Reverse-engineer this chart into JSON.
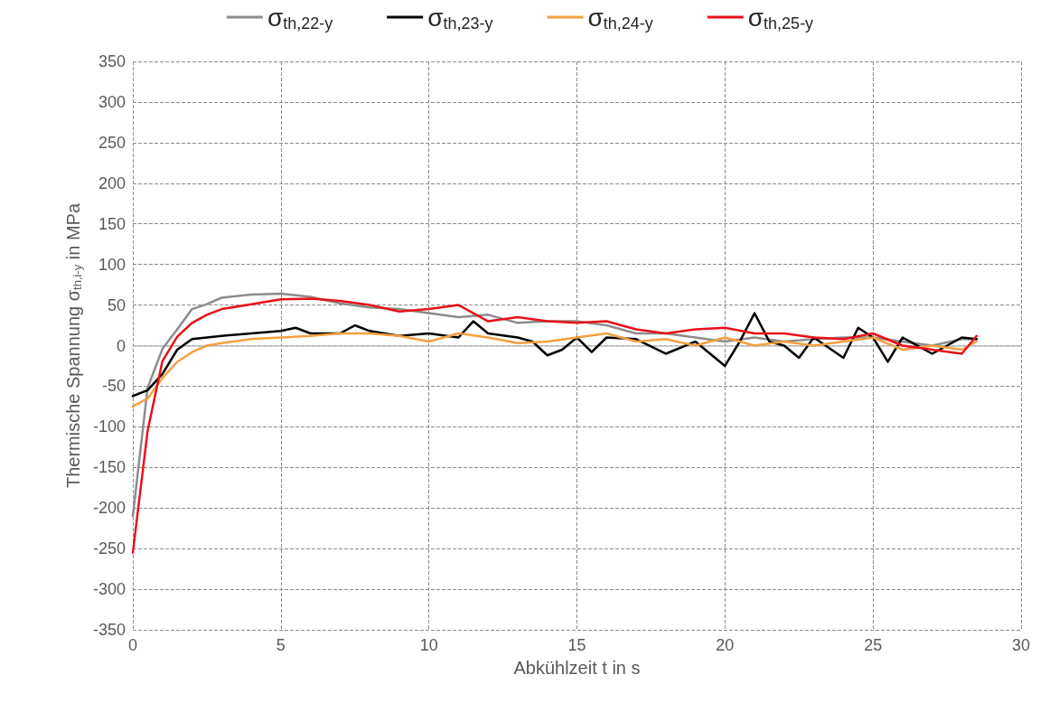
{
  "chart_data": {
    "type": "line",
    "xlabel": "Abkühlzeit t in s",
    "ylabel": "Thermische Spannung σ$_{th,i-y}$ in MPa",
    "xlim": [
      0,
      30
    ],
    "xticks": [
      0,
      5,
      10,
      15,
      20,
      25,
      30
    ],
    "ylim": [
      -350,
      350
    ],
    "yticks": [
      -350,
      -300,
      -250,
      -200,
      -150,
      -100,
      -50,
      0,
      50,
      100,
      150,
      200,
      250,
      300,
      350
    ],
    "grid": true,
    "legend": "top",
    "marker": "none",
    "line_style": "solid",
    "series": [
      {
        "name": "σ$_{th,22-y}$",
        "color": "#8c8c8c",
        "x": [
          0,
          0.5,
          1,
          1.5,
          2,
          2.5,
          3,
          4,
          5,
          6,
          7,
          8,
          9,
          10,
          11,
          12,
          13,
          14,
          15,
          16,
          17,
          18,
          19,
          20,
          21,
          22,
          23,
          24,
          25,
          26,
          27,
          28,
          28.5
        ],
        "values": [
          -210,
          -52,
          -4,
          20,
          45,
          51,
          59,
          63,
          64,
          60,
          52,
          47,
          45,
          40,
          35,
          38,
          28,
          30,
          30,
          25,
          15,
          15,
          10,
          5,
          10,
          5,
          8,
          10,
          10,
          5,
          0,
          8,
          8
        ]
      },
      {
        "name": "σ$_{th,23-y}$",
        "color": "#000000",
        "x": [
          0,
          0.5,
          1,
          1.5,
          2,
          2.5,
          3,
          4,
          5,
          5.5,
          6,
          7,
          7.5,
          8,
          9,
          10,
          11,
          11.5,
          12,
          13,
          13.5,
          14,
          14.5,
          15,
          15.5,
          16,
          17,
          18,
          19,
          20,
          20.5,
          21,
          21.5,
          22,
          22.5,
          23,
          24,
          24.5,
          25,
          25.5,
          26,
          27,
          28,
          28.5
        ],
        "values": [
          -62,
          -55,
          -35,
          -5,
          8,
          10,
          12,
          15,
          18,
          22,
          15,
          15,
          25,
          18,
          12,
          15,
          10,
          30,
          15,
          10,
          5,
          -12,
          -5,
          10,
          -8,
          10,
          8,
          -10,
          5,
          -25,
          5,
          40,
          5,
          0,
          -15,
          10,
          -15,
          22,
          10,
          -20,
          10,
          -10,
          10,
          8
        ]
      },
      {
        "name": "σ$_{th,24-y}$",
        "color": "#f4a040",
        "x": [
          0,
          0.5,
          1,
          1.5,
          2,
          2.5,
          3,
          4,
          5,
          6,
          7,
          8,
          9,
          10,
          11,
          12,
          13,
          14,
          15,
          16,
          17,
          18,
          19,
          20,
          21,
          22,
          23,
          24,
          25,
          26,
          27,
          28,
          28.5
        ],
        "values": [
          -75,
          -65,
          -40,
          -20,
          -8,
          0,
          3,
          8,
          10,
          12,
          15,
          15,
          12,
          5,
          15,
          10,
          3,
          5,
          10,
          15,
          5,
          8,
          0,
          10,
          0,
          5,
          0,
          5,
          10,
          -5,
          0,
          -5,
          5
        ]
      },
      {
        "name": "σ$_{th,25-y}$",
        "color": "#e8101a",
        "x": [
          0,
          0.5,
          1,
          1.5,
          2,
          2.5,
          3,
          4,
          5,
          6,
          7,
          8,
          9,
          10,
          11,
          12,
          13,
          14,
          15,
          16,
          17,
          18,
          19,
          20,
          21,
          22,
          23,
          24,
          25,
          26,
          27,
          28,
          28.5
        ],
        "values": [
          -255,
          -105,
          -19,
          11,
          28,
          38,
          45,
          51,
          57,
          58,
          55,
          50,
          42,
          45,
          50,
          30,
          35,
          30,
          28,
          30,
          20,
          15,
          20,
          22,
          15,
          15,
          10,
          8,
          15,
          0,
          -5,
          -10,
          12
        ]
      }
    ]
  }
}
